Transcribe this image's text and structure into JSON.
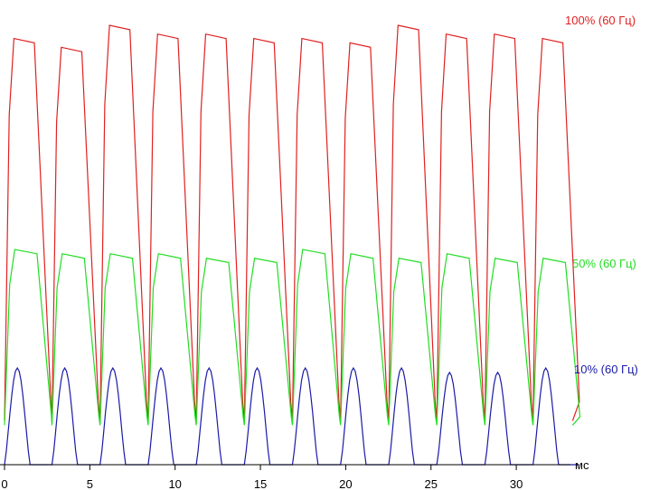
{
  "chart_data": {
    "type": "line",
    "title": "",
    "xlabel": "мс",
    "ylabel": "",
    "xlim": [
      0,
      33.3
    ],
    "ylim": [
      0,
      100
    ],
    "x_ticks": [
      0,
      5,
      10,
      15,
      20,
      25,
      30
    ],
    "x_tick_labels": [
      "0",
      "5",
      "10",
      "15",
      "20",
      "25",
      "30"
    ],
    "grid": false,
    "legend": "right",
    "cycle_starts": [
      0,
      2.78,
      5.6,
      8.42,
      11.24,
      14.06,
      16.88,
      19.7,
      22.52,
      25.34,
      28.16,
      30.98
    ],
    "series": [
      {
        "name": "100% (60 Гц)",
        "color": "#e02020",
        "baseline": 10,
        "peaks": [
          97,
          95,
          100,
          98,
          98,
          97,
          97,
          96,
          100,
          98,
          98,
          97
        ]
      },
      {
        "name": "50% (60 Гц)",
        "color": "#22dd22",
        "baseline": 9,
        "peaks": [
          49,
          48,
          48,
          48,
          47,
          47,
          49,
          48,
          47,
          48,
          47,
          47
        ]
      },
      {
        "name": "10% (60 Гц)",
        "color": "#1a1aa8",
        "baseline": 0,
        "peaks": [
          22,
          22,
          22,
          22,
          22,
          22,
          22,
          22,
          22,
          21,
          21,
          22
        ]
      }
    ]
  }
}
